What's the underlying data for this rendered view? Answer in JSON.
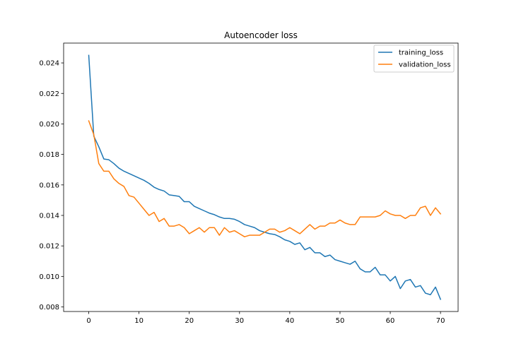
{
  "chart_data": {
    "type": "line",
    "title": "Autoencoder loss",
    "xlabel": "",
    "ylabel": "",
    "xlim": [
      -5,
      73.5
    ],
    "ylim": [
      0.0077,
      0.0253
    ],
    "xticks": [
      0,
      10,
      20,
      30,
      40,
      50,
      60,
      70
    ],
    "yticks": [
      0.008,
      0.01,
      0.012,
      0.014,
      0.016,
      0.018,
      0.02,
      0.022,
      0.024
    ],
    "ytick_labels": [
      "0.008",
      "0.010",
      "0.012",
      "0.014",
      "0.016",
      "0.018",
      "0.020",
      "0.022",
      "0.024"
    ],
    "grid": false,
    "legend_position": "top-right",
    "x": [
      0,
      1,
      2,
      3,
      4,
      5,
      6,
      7,
      8,
      9,
      10,
      11,
      12,
      13,
      14,
      15,
      16,
      17,
      18,
      19,
      20,
      21,
      22,
      23,
      24,
      25,
      26,
      27,
      28,
      29,
      30,
      31,
      32,
      33,
      34,
      35,
      36,
      37,
      38,
      39,
      40,
      41,
      42,
      43,
      44,
      45,
      46,
      47,
      48,
      49,
      50,
      51,
      52,
      53,
      54,
      55,
      56,
      57,
      58,
      59,
      60,
      61,
      62,
      63,
      64,
      65,
      66,
      67,
      68,
      69,
      70
    ],
    "series": [
      {
        "name": "training_loss",
        "color": "#1f77b4",
        "values": [
          0.0245,
          0.0192,
          0.0185,
          0.0177,
          0.01765,
          0.0174,
          0.0171,
          0.0169,
          0.01675,
          0.0166,
          0.01645,
          0.0163,
          0.0161,
          0.01585,
          0.0157,
          0.0156,
          0.01535,
          0.0153,
          0.01525,
          0.0149,
          0.0149,
          0.0146,
          0.01445,
          0.0143,
          0.01415,
          0.01405,
          0.0139,
          0.0138,
          0.0138,
          0.01375,
          0.0136,
          0.0134,
          0.0133,
          0.0132,
          0.013,
          0.0129,
          0.0128,
          0.01275,
          0.0126,
          0.0124,
          0.0123,
          0.0121,
          0.0122,
          0.01175,
          0.0119,
          0.01155,
          0.01155,
          0.0113,
          0.0114,
          0.0111,
          0.011,
          0.0109,
          0.0108,
          0.011,
          0.0105,
          0.0103,
          0.0103,
          0.0106,
          0.0101,
          0.0101,
          0.0097,
          0.01,
          0.0092,
          0.0097,
          0.0098,
          0.0093,
          0.0094,
          0.0089,
          0.0088,
          0.0093,
          0.0085
        ]
      },
      {
        "name": "validation_loss",
        "color": "#ff7f0e",
        "values": [
          0.0202,
          0.0193,
          0.0174,
          0.0169,
          0.0169,
          0.0164,
          0.0161,
          0.0159,
          0.0153,
          0.0152,
          0.0148,
          0.0144,
          0.014,
          0.0142,
          0.0136,
          0.0138,
          0.0133,
          0.0133,
          0.0134,
          0.0132,
          0.0128,
          0.013,
          0.0132,
          0.0129,
          0.0132,
          0.0132,
          0.0127,
          0.0132,
          0.0129,
          0.013,
          0.0128,
          0.0126,
          0.0127,
          0.0127,
          0.0127,
          0.0129,
          0.0131,
          0.0131,
          0.0129,
          0.013,
          0.0132,
          0.013,
          0.0128,
          0.0131,
          0.0134,
          0.0131,
          0.0133,
          0.0133,
          0.0135,
          0.0135,
          0.0137,
          0.0135,
          0.0134,
          0.0134,
          0.0139,
          0.0139,
          0.0139,
          0.0139,
          0.014,
          0.0143,
          0.0141,
          0.014,
          0.014,
          0.0138,
          0.014,
          0.014,
          0.0145,
          0.0146,
          0.014,
          0.0145,
          0.0141
        ]
      }
    ]
  }
}
